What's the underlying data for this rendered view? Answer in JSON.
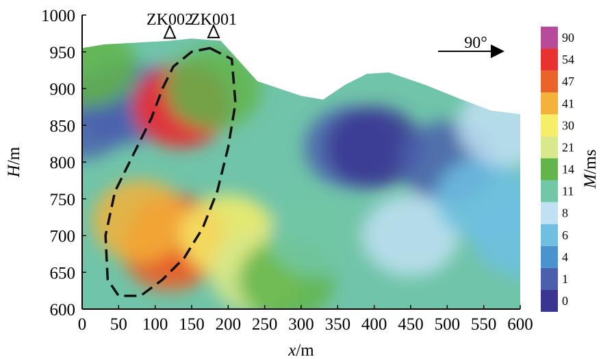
{
  "chart_data": {
    "type": "heatmap",
    "title": "",
    "xlabel": {
      "var": "x",
      "unit": "/m"
    },
    "ylabel": {
      "var": "H",
      "unit": "/m"
    },
    "xlim": [
      0,
      600
    ],
    "ylim": [
      600,
      1000
    ],
    "x_ticks": [
      "0",
      "50",
      "100",
      "150",
      "200",
      "250",
      "300",
      "350",
      "400",
      "450",
      "500",
      "550",
      "600"
    ],
    "y_ticks": [
      "600",
      "650",
      "700",
      "750",
      "800",
      "850",
      "900",
      "950",
      "1000"
    ],
    "colorbar": {
      "label": {
        "var": "M",
        "unit": "/ms"
      },
      "ticks": [
        "0",
        "1",
        "4",
        "6",
        "8",
        "11",
        "14",
        "21",
        "30",
        "41",
        "47",
        "54",
        "90"
      ],
      "colors": [
        "#3b3592",
        "#4a60ad",
        "#4a93cf",
        "#6fbfe3",
        "#bfe1f3",
        "#72c7a6",
        "#62b54a",
        "#d8e88a",
        "#f7ee67",
        "#f5b23a",
        "#ea6328",
        "#e8322e",
        "#b84a9a"
      ]
    },
    "surface_top": [
      [
        0,
        955
      ],
      [
        30,
        960
      ],
      [
        120,
        965
      ],
      [
        150,
        968
      ],
      [
        190,
        965
      ],
      [
        240,
        910
      ],
      [
        300,
        890
      ],
      [
        330,
        885
      ],
      [
        360,
        905
      ],
      [
        390,
        920
      ],
      [
        420,
        922
      ],
      [
        470,
        905
      ],
      [
        520,
        885
      ],
      [
        560,
        870
      ],
      [
        600,
        865
      ]
    ],
    "boreholes": [
      {
        "label": "ZK002",
        "x": 120
      },
      {
        "label": "ZK001",
        "x": 180
      }
    ],
    "anomaly_outline": [
      [
        175,
        955
      ],
      [
        205,
        940
      ],
      [
        210,
        880
      ],
      [
        200,
        820
      ],
      [
        185,
        760
      ],
      [
        165,
        710
      ],
      [
        140,
        670
      ],
      [
        110,
        640
      ],
      [
        80,
        618
      ],
      [
        50,
        618
      ],
      [
        35,
        640
      ],
      [
        32,
        700
      ],
      [
        45,
        760
      ],
      [
        70,
        810
      ],
      [
        95,
        860
      ],
      [
        110,
        900
      ],
      [
        125,
        930
      ],
      [
        150,
        950
      ]
    ],
    "direction_annotation": "90°",
    "series": [
      {
        "values": [
          [
            0,
            860,
            2
          ],
          [
            60,
            880,
            1
          ],
          [
            10,
            930,
            14
          ],
          [
            140,
            880,
            90
          ],
          [
            135,
            875,
            70
          ],
          [
            130,
            700,
            54
          ],
          [
            120,
            680,
            47
          ],
          [
            80,
            720,
            41
          ],
          [
            200,
            700,
            30
          ],
          [
            240,
            650,
            21
          ],
          [
            280,
            640,
            14
          ],
          [
            320,
            700,
            11
          ],
          [
            370,
            820,
            1
          ],
          [
            400,
            820,
            0
          ],
          [
            500,
            800,
            3
          ],
          [
            450,
            700,
            8
          ],
          [
            550,
            750,
            6
          ],
          [
            600,
            700,
            6
          ],
          [
            580,
            850,
            8
          ],
          [
            180,
            900,
            20
          ]
        ]
      }
    ]
  }
}
